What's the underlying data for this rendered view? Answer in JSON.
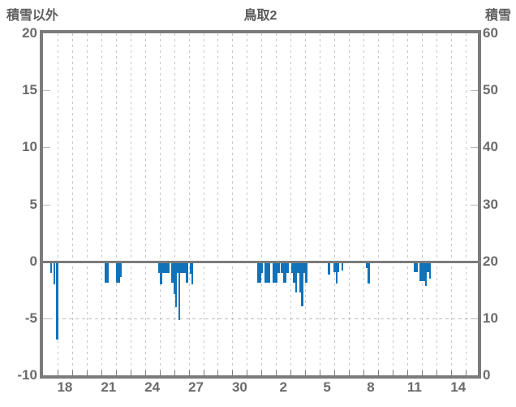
{
  "title": "鳥取2",
  "left_axis_title": "積雪以外",
  "right_axis_title": "積雪",
  "colors": {
    "bar": "#1172ba",
    "frame": "#7b7b7b",
    "grid": "#c6c6c6",
    "text": "#6b6b6b",
    "title_text": "#595959"
  },
  "chart_data": {
    "type": "bar",
    "title": "鳥取2",
    "left_axis": {
      "label": "積雪以外",
      "range": [
        -10,
        20
      ],
      "ticks": [
        20,
        15,
        10,
        5,
        0,
        -5,
        -10
      ]
    },
    "right_axis": {
      "label": "積雪",
      "range": [
        0,
        60
      ],
      "ticks": [
        60,
        50,
        40,
        30,
        20,
        10,
        0
      ],
      "note": "no visible data series on this axis"
    },
    "x_axis": {
      "unit": "day of month; t = days since left edge (day 17, 00:00), first month has 31 days",
      "domain_t": [
        0,
        29.85
      ],
      "tick_labels": [
        {
          "label": "18",
          "t": 1.5
        },
        {
          "label": "21",
          "t": 4.5
        },
        {
          "label": "24",
          "t": 7.5
        },
        {
          "label": "27",
          "t": 10.5
        },
        {
          "label": "30",
          "t": 13.5
        },
        {
          "label": "2",
          "t": 16.5
        },
        {
          "label": "5",
          "t": 19.5
        },
        {
          "label": "8",
          "t": 22.5
        },
        {
          "label": "11",
          "t": 25.5
        },
        {
          "label": "14",
          "t": 28.5
        }
      ]
    },
    "grid": {
      "vertical_dashed_every_day": true,
      "horizontal_dashed_at_left_value": -5,
      "solid_line_at_left_value": 0,
      "spine_tick_left_values": [
        15,
        10,
        5,
        -5
      ]
    },
    "series_name": "積雪以外 (left axis, negative hourly values)",
    "bars_format": "[t_start_days, t_end_days, value_left_axis]",
    "bars": [
      [
        0.5,
        0.63,
        -1.0
      ],
      [
        0.72,
        0.84,
        -2.0
      ],
      [
        0.89,
        1.04,
        -6.9
      ],
      [
        4.25,
        4.51,
        -1.9
      ],
      [
        5.01,
        5.27,
        -1.9
      ],
      [
        5.27,
        5.38,
        -1.35
      ],
      [
        7.91,
        8.69,
        -1.05
      ],
      [
        8.03,
        8.18,
        -2.0
      ],
      [
        8.8,
        9.95,
        -1.0
      ],
      [
        8.8,
        9.17,
        -1.85
      ],
      [
        8.95,
        9.19,
        -2.9
      ],
      [
        9.06,
        9.19,
        -4.0
      ],
      [
        9.28,
        9.41,
        -5.15
      ],
      [
        9.82,
        9.95,
        -1.9
      ],
      [
        10.06,
        10.32,
        -1.1
      ],
      [
        10.19,
        10.32,
        -2.0
      ],
      [
        14.72,
        14.96,
        -1.9
      ],
      [
        14.96,
        15.09,
        -1.0
      ],
      [
        15.22,
        15.61,
        -1.9
      ],
      [
        15.74,
        16.11,
        -1.9
      ],
      [
        16.11,
        16.24,
        -1.0
      ],
      [
        16.33,
        16.85,
        -1.0
      ],
      [
        16.46,
        16.72,
        -1.9
      ],
      [
        17.04,
        18.0,
        -1.0
      ],
      [
        17.17,
        17.45,
        -1.9
      ],
      [
        17.32,
        17.45,
        -2.75
      ],
      [
        17.58,
        17.72,
        -2.75
      ],
      [
        17.72,
        17.87,
        -3.95
      ],
      [
        18.0,
        18.13,
        -1.9
      ],
      [
        19.56,
        19.7,
        -1.15
      ],
      [
        19.95,
        20.34,
        -0.95
      ],
      [
        20.1,
        20.21,
        -1.95
      ],
      [
        20.47,
        20.6,
        -0.8
      ],
      [
        22.18,
        22.29,
        -0.6
      ],
      [
        22.29,
        22.44,
        -1.95
      ],
      [
        25.45,
        25.71,
        -0.95
      ],
      [
        25.84,
        26.23,
        -1.75
      ],
      [
        26.23,
        26.36,
        -2.15
      ],
      [
        26.36,
        26.62,
        -0.95
      ],
      [
        26.49,
        26.62,
        -1.5
      ]
    ]
  }
}
